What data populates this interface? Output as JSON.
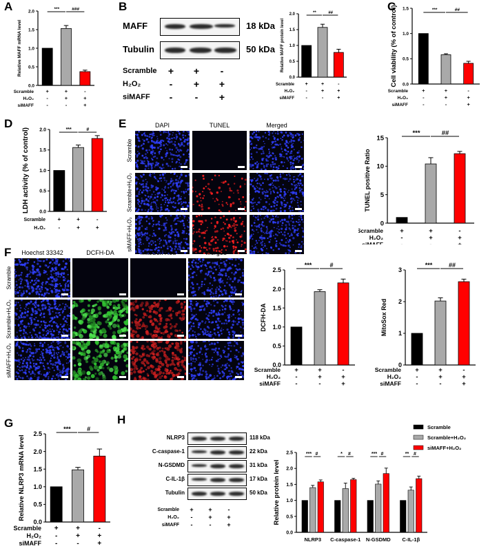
{
  "panel_labels": {
    "A": "A",
    "B": "B",
    "C": "C",
    "D": "D",
    "E": "E",
    "F": "F",
    "G": "G",
    "H": "H"
  },
  "signs": {
    "plus": "+",
    "minus": "-"
  },
  "conditions": {
    "three": [
      "Scramble",
      "H₂O₂",
      "siMAFF"
    ],
    "pattern": [
      [
        "+",
        "+",
        "-"
      ],
      [
        "-",
        "+",
        "+"
      ],
      [
        "-",
        "-",
        "+"
      ]
    ]
  },
  "blot_B": {
    "rows": [
      {
        "name": "MAFF",
        "kda": "18 kDa"
      },
      {
        "name": "Tubulin",
        "kda": "50 kDa"
      }
    ]
  },
  "blot_H": {
    "rows": [
      {
        "name": "NLRP3",
        "kda": "118 kDa"
      },
      {
        "name": "C-caspase-1",
        "kda": "22 kDa"
      },
      {
        "name": "N-GSDMD",
        "kda": "31 kDa"
      },
      {
        "name": "C-IL-1β",
        "kda": "17 kDa"
      },
      {
        "name": "Tubulin",
        "kda": "50 kDa"
      }
    ]
  },
  "micro_E": {
    "cols": [
      "DAPI",
      "TUNEL",
      "Merged"
    ],
    "rows": [
      "Scramble",
      "Scramble+H₂O₂",
      "siMAFF+H₂O₂"
    ]
  },
  "micro_F": {
    "cols": [
      "Hoechst 33342",
      "DCFH-DA",
      "MitoSox Red",
      "Merged"
    ],
    "rows": [
      "Scramble",
      "Scramble+H₂O₂",
      "siMAFF+H₂O₂"
    ]
  },
  "colors": {
    "bar1": "#000000",
    "bar2": "#a9a9a9",
    "bar3": "#ff0000"
  },
  "chart_data": [
    {
      "id": "A",
      "type": "bar",
      "ylabel": "Relative MAFF mRNA level",
      "ylim": [
        0,
        2.0
      ],
      "yticks": [
        "0.0",
        "0.5",
        "1.0",
        "1.5",
        "2.0"
      ],
      "tick_values": [
        0,
        0.5,
        1,
        1.5,
        2
      ],
      "values": [
        1.0,
        1.53,
        0.37
      ],
      "errors": [
        0,
        0.08,
        0.04
      ],
      "sig": [
        {
          "a": 0,
          "b": 1,
          "label": "***"
        },
        {
          "a": 1,
          "b": 2,
          "label": "###"
        }
      ]
    },
    {
      "id": "B",
      "type": "bar",
      "ylabel": "Relative MAFF protein level",
      "ylim": [
        0,
        2.0
      ],
      "yticks": [
        "0.0",
        "0.5",
        "1.0",
        "1.5",
        "2.0"
      ],
      "tick_values": [
        0,
        0.5,
        1,
        1.5,
        2
      ],
      "values": [
        1.0,
        1.57,
        0.78
      ],
      "errors": [
        0,
        0.1,
        0.1
      ],
      "sig": [
        {
          "a": 0,
          "b": 1,
          "label": "**"
        },
        {
          "a": 1,
          "b": 2,
          "label": "##"
        }
      ]
    },
    {
      "id": "C",
      "type": "bar",
      "ylabel": "Cell viability (% of control)",
      "ylim": [
        0,
        1.5
      ],
      "yticks": [
        "0.0",
        "0.5",
        "1.0",
        "1.5"
      ],
      "tick_values": [
        0,
        0.5,
        1,
        1.5
      ],
      "values": [
        1.0,
        0.58,
        0.41
      ],
      "errors": [
        0,
        0.02,
        0.04
      ],
      "sig": [
        {
          "a": 0,
          "b": 1,
          "label": "***"
        },
        {
          "a": 1,
          "b": 2,
          "label": "##"
        }
      ]
    },
    {
      "id": "D",
      "type": "bar",
      "ylabel": "LDH activity (% of control)",
      "ylim": [
        0,
        2.0
      ],
      "yticks": [
        "0.0",
        "0.5",
        "1.0",
        "1.5",
        "2.0"
      ],
      "tick_values": [
        0,
        0.5,
        1,
        1.5,
        2
      ],
      "values": [
        1.0,
        1.56,
        1.78
      ],
      "errors": [
        0,
        0.06,
        0.07
      ],
      "sig": [
        {
          "a": 0,
          "b": 1,
          "label": "***"
        },
        {
          "a": 1,
          "b": 2,
          "label": "#"
        }
      ]
    },
    {
      "id": "E",
      "type": "bar",
      "ylabel": "TUNEL positive Ratio",
      "ylim": [
        0,
        15
      ],
      "yticks": [
        "0",
        "5",
        "10",
        "15"
      ],
      "tick_values": [
        0,
        5,
        10,
        15
      ],
      "values": [
        1.0,
        10.4,
        12.2
      ],
      "errors": [
        0,
        1.1,
        0.4
      ],
      "sig": [
        {
          "a": 0,
          "b": 1,
          "label": "***"
        },
        {
          "a": 1,
          "b": 2,
          "label": "##"
        }
      ]
    },
    {
      "id": "F1",
      "type": "bar",
      "ylabel": "DCFH-DA",
      "ylim": [
        0,
        2.5
      ],
      "yticks": [
        "0.0",
        "0.5",
        "1.0",
        "1.5",
        "2.0",
        "2.5"
      ],
      "tick_values": [
        0,
        0.5,
        1,
        1.5,
        2,
        2.5
      ],
      "values": [
        1.0,
        1.93,
        2.16
      ],
      "errors": [
        0,
        0.05,
        0.1
      ],
      "sig": [
        {
          "a": 0,
          "b": 1,
          "label": "***"
        },
        {
          "a": 1,
          "b": 2,
          "label": "#"
        }
      ]
    },
    {
      "id": "F2",
      "type": "bar",
      "ylabel": "MitoSox Red",
      "ylim": [
        0,
        3
      ],
      "yticks": [
        "0",
        "1",
        "2",
        "3"
      ],
      "tick_values": [
        0,
        1,
        2,
        3
      ],
      "values": [
        1.0,
        2.02,
        2.63
      ],
      "errors": [
        0,
        0.1,
        0.08
      ],
      "sig": [
        {
          "a": 0,
          "b": 1,
          "label": "***"
        },
        {
          "a": 1,
          "b": 2,
          "label": "##"
        }
      ]
    },
    {
      "id": "G",
      "type": "bar",
      "ylabel": "Relative NLRP3 mRNA level",
      "ylim": [
        0,
        2.5
      ],
      "yticks": [
        "0.0",
        "0.5",
        "1.0",
        "1.5",
        "2.0",
        "2.5"
      ],
      "tick_values": [
        0,
        0.5,
        1,
        1.5,
        2,
        2.5
      ],
      "values": [
        1.0,
        1.48,
        1.87
      ],
      "errors": [
        0,
        0.07,
        0.2
      ],
      "sig": [
        {
          "a": 0,
          "b": 1,
          "label": "***"
        },
        {
          "a": 1,
          "b": 2,
          "label": "#"
        }
      ]
    },
    {
      "id": "H",
      "type": "bar",
      "ylabel": "Relative protein level",
      "ylim": [
        0,
        2.5
      ],
      "yticks": [
        "0.0",
        "0.5",
        "1.0",
        "1.5",
        "2.0",
        "2.5"
      ],
      "tick_values": [
        0,
        0.5,
        1,
        1.5,
        2,
        2.5
      ],
      "categories": [
        "NLRP3",
        "C-caspase-1",
        "N-GSDMD",
        "C-IL-1β"
      ],
      "series": [
        {
          "name": "Scramble",
          "values": [
            1.0,
            1.0,
            1.0,
            1.0
          ],
          "errors": [
            0,
            0,
            0,
            0
          ]
        },
        {
          "name": "Scramble+H₂O₂",
          "values": [
            1.4,
            1.37,
            1.51,
            1.32
          ],
          "errors": [
            0.07,
            0.17,
            0.1,
            0.1
          ]
        },
        {
          "name": "siMAFF+H₂O₂",
          "values": [
            1.58,
            1.65,
            1.84,
            1.68
          ],
          "errors": [
            0.06,
            0.04,
            0.17,
            0.08
          ]
        }
      ],
      "sig": [
        [
          "***",
          "#"
        ],
        [
          "*",
          "#"
        ],
        [
          "***",
          "#"
        ],
        [
          "**",
          "#"
        ]
      ],
      "legend": "top-right"
    }
  ]
}
